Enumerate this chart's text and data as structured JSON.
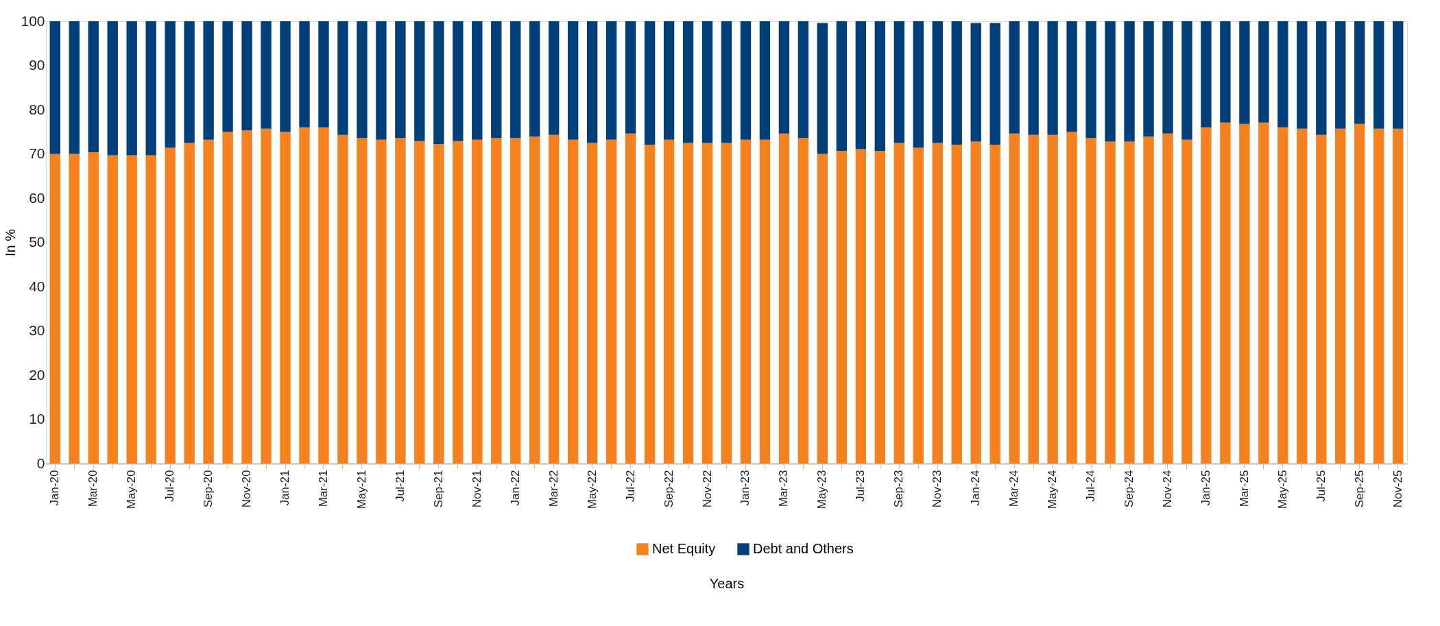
{
  "chart_data": {
    "type": "bar",
    "stacked": true,
    "xlabel": "Years",
    "ylabel": "In %",
    "ylim": [
      0,
      100
    ],
    "yticks": [
      0,
      10,
      20,
      30,
      40,
      50,
      60,
      70,
      80,
      90,
      100
    ],
    "legend": "bottom",
    "categories": [
      "Jan-20",
      null,
      "Mar-20",
      null,
      "May-20",
      null,
      "Jul-20",
      null,
      "Sep-20",
      null,
      "Nov-20",
      null,
      "Jan-21",
      null,
      "Mar-21",
      null,
      "May-21",
      null,
      "Jul-21",
      null,
      "Sep-21",
      null,
      "Nov-21",
      null,
      "Jan-22",
      null,
      "Mar-22",
      null,
      "May-22",
      null,
      "Jul-22",
      null,
      "Sep-22",
      null,
      "Nov-22",
      null,
      "Jan-23",
      null,
      "Mar-23",
      null,
      "May-23",
      null,
      "Jul-23",
      null,
      "Sep-23",
      null,
      "Nov-23",
      null,
      "Jan-24",
      null,
      "Mar-24",
      null,
      "May-24",
      null,
      "Jul-24",
      null,
      "Sep-24",
      null,
      "Nov-24",
      null,
      "Jan-25",
      null,
      "Mar-25",
      null,
      "May-25",
      null,
      "Jul-25",
      null,
      "Sep-25",
      null,
      "Nov-25"
    ],
    "series": [
      {
        "name": "Net Equity",
        "color": "#f5821f",
        "values": [
          70.0,
          70.0,
          70.4,
          69.7,
          69.7,
          69.7,
          71.4,
          72.5,
          73.2,
          75.0,
          75.3,
          75.7,
          75.0,
          76.0,
          76.0,
          74.3,
          73.6,
          73.2,
          73.6,
          72.9,
          72.2,
          72.9,
          73.2,
          73.6,
          73.6,
          73.9,
          74.3,
          73.2,
          72.5,
          73.2,
          74.6,
          72.1,
          73.2,
          72.5,
          72.5,
          72.5,
          73.2,
          73.2,
          74.6,
          73.6,
          70.0,
          70.7,
          71.1,
          70.7,
          72.5,
          71.4,
          72.5,
          72.1,
          72.8,
          72.1,
          74.6,
          74.3,
          74.3,
          75.0,
          73.6,
          72.8,
          72.8,
          73.9,
          74.6,
          73.2,
          76.0,
          77.1,
          76.8,
          77.1,
          76.0,
          75.7,
          74.3,
          75.7,
          76.8,
          75.7,
          75.7
        ]
      },
      {
        "name": "Debt and Others",
        "color": "#003f7a",
        "values": [
          30.0,
          30.0,
          29.6,
          30.3,
          30.3,
          30.3,
          28.6,
          27.5,
          26.8,
          25.0,
          24.7,
          24.3,
          25.0,
          24.0,
          24.0,
          25.7,
          26.4,
          26.8,
          26.4,
          27.1,
          27.8,
          27.1,
          26.8,
          26.4,
          26.4,
          26.1,
          25.7,
          26.8,
          27.5,
          26.8,
          25.4,
          27.9,
          26.8,
          27.5,
          27.5,
          27.5,
          26.8,
          26.8,
          25.4,
          26.4,
          29.6,
          29.3,
          28.9,
          29.3,
          27.5,
          28.6,
          27.5,
          27.9,
          26.8,
          27.5,
          25.4,
          25.7,
          25.7,
          25.0,
          26.4,
          27.2,
          27.2,
          26.1,
          25.4,
          26.8,
          24.0,
          22.9,
          23.2,
          22.9,
          24.0,
          24.3,
          25.7,
          24.3,
          23.2,
          24.3,
          24.3
        ]
      }
    ]
  }
}
